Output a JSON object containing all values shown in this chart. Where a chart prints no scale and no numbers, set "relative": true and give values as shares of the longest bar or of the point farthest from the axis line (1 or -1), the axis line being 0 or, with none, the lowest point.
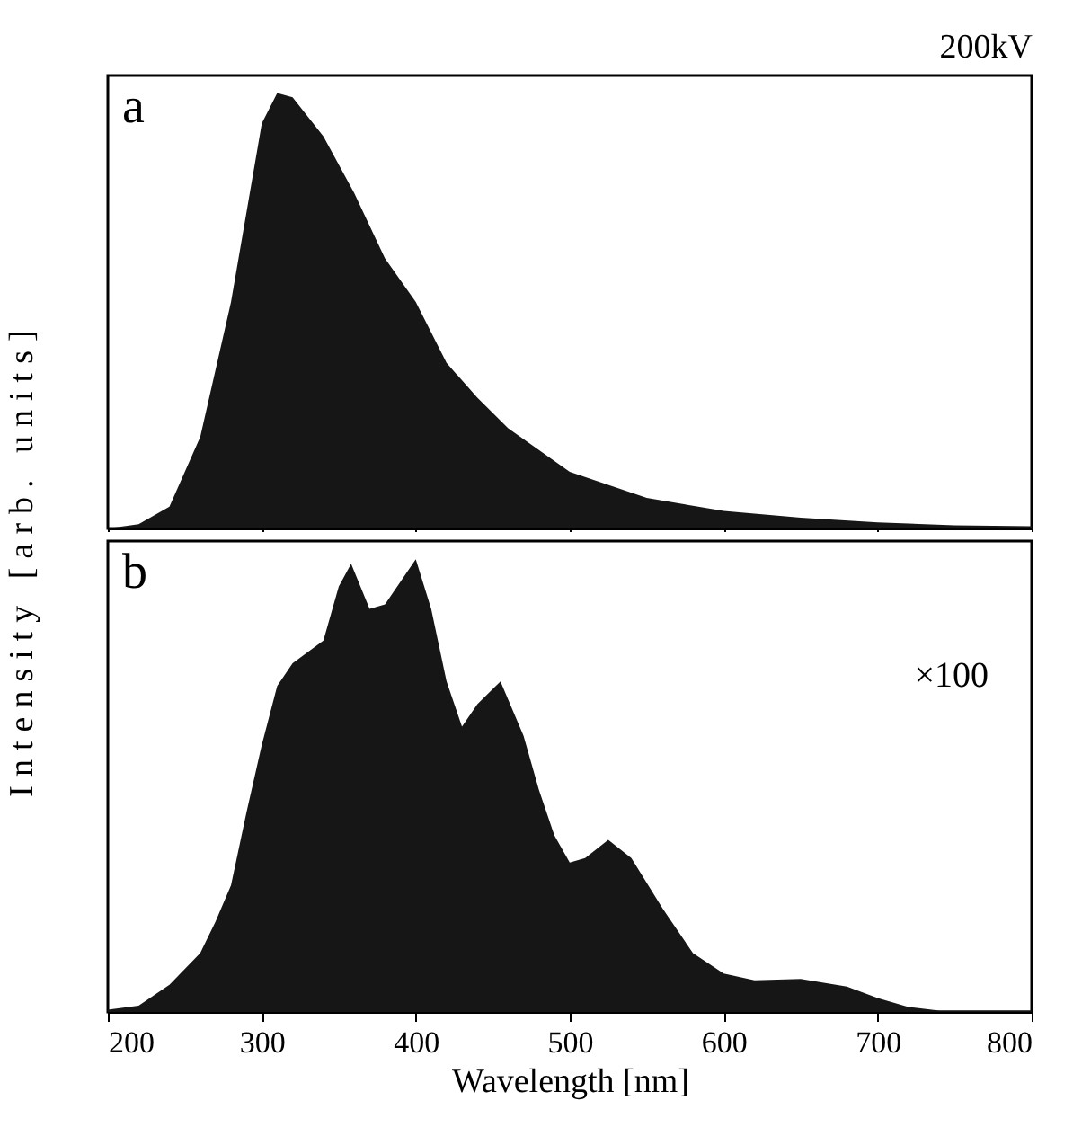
{
  "chart_data": [
    {
      "type": "area",
      "title": "200kV",
      "ylabel": "Intensity [arb. units]",
      "relative": true,
      "annotations": [
        "a"
      ],
      "xlim": [
        200,
        800
      ],
      "xticks": [
        200,
        300,
        400,
        500,
        600,
        700,
        800
      ],
      "tick_labels": false,
      "grid": false,
      "x": [
        200,
        220,
        240,
        260,
        280,
        300,
        310,
        320,
        340,
        360,
        380,
        400,
        420,
        440,
        460,
        480,
        500,
        550,
        600,
        650,
        700,
        750,
        800
      ],
      "series": [
        {
          "color": "#161616",
          "values": [
            0,
            0.01,
            0.05,
            0.21,
            0.52,
            0.93,
            1.0,
            0.99,
            0.9,
            0.77,
            0.62,
            0.52,
            0.38,
            0.3,
            0.23,
            0.18,
            0.13,
            0.07,
            0.04,
            0.025,
            0.014,
            0.007,
            0.005
          ]
        }
      ]
    },
    {
      "type": "area",
      "xlabel": "Wavelength [nm]",
      "relative": true,
      "annotations": [
        "b",
        "×100"
      ],
      "xlim": [
        200,
        800
      ],
      "xticks": [
        200,
        300,
        400,
        500,
        600,
        700,
        800
      ],
      "tick_labels": "x",
      "grid": false,
      "x": [
        200,
        220,
        240,
        260,
        270,
        280,
        290,
        300,
        310,
        320,
        340,
        350,
        358,
        370,
        380,
        400,
        410,
        420,
        430,
        440,
        455,
        470,
        480,
        490,
        500,
        510,
        525,
        540,
        560,
        580,
        600,
        620,
        650,
        680,
        700,
        720,
        740,
        800
      ],
      "series": [
        {
          "color": "#161616",
          "values": [
            0.005,
            0.014,
            0.06,
            0.13,
            0.2,
            0.28,
            0.44,
            0.59,
            0.72,
            0.77,
            0.82,
            0.94,
            0.99,
            0.89,
            0.9,
            1.0,
            0.89,
            0.73,
            0.63,
            0.68,
            0.73,
            0.61,
            0.49,
            0.39,
            0.33,
            0.34,
            0.38,
            0.34,
            0.23,
            0.13,
            0.085,
            0.07,
            0.073,
            0.056,
            0.031,
            0.011,
            0.003,
            0.003
          ]
        }
      ]
    }
  ]
}
